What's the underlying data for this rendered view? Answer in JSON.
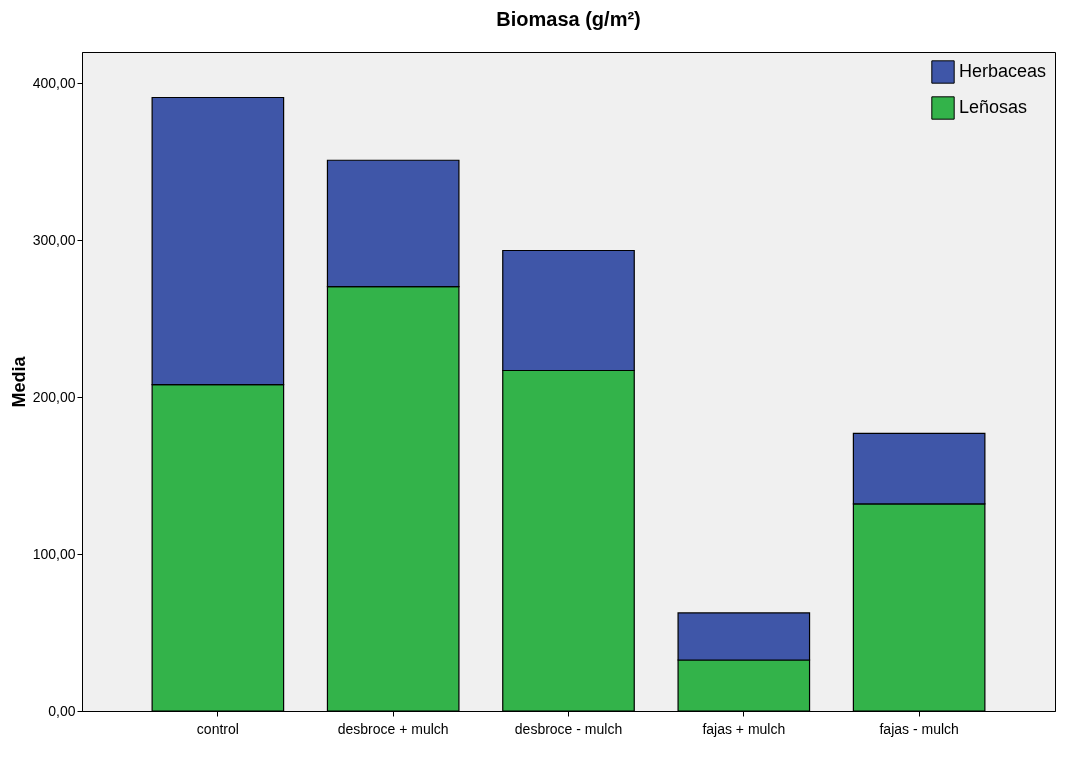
{
  "chart_data": {
    "type": "bar",
    "title": "Biomasa (g/m²)",
    "ylabel": "Media",
    "stacked": true,
    "legend": "top right",
    "grid": false,
    "categories": [
      "control",
      "desbroce + mulch",
      "desbroce - mulch",
      "fajas + mulch",
      "fajas - mulch"
    ],
    "series": [
      {
        "name": "Leñosas",
        "color": "#33b34a",
        "values": [
          208,
          270.5,
          217,
          32.5,
          132
        ]
      },
      {
        "name": "Herbaceas",
        "color": "#3f56a8",
        "values": [
          183,
          80.5,
          76.5,
          30,
          45
        ]
      }
    ],
    "ylim": [
      0,
      420
    ],
    "yticks": [
      {
        "value": 0,
        "label": "0,00"
      },
      {
        "value": 100,
        "label": "100,00"
      },
      {
        "value": 200,
        "label": "200,00"
      },
      {
        "value": 300,
        "label": "300,00"
      },
      {
        "value": 400,
        "label": "400,00"
      }
    ]
  }
}
